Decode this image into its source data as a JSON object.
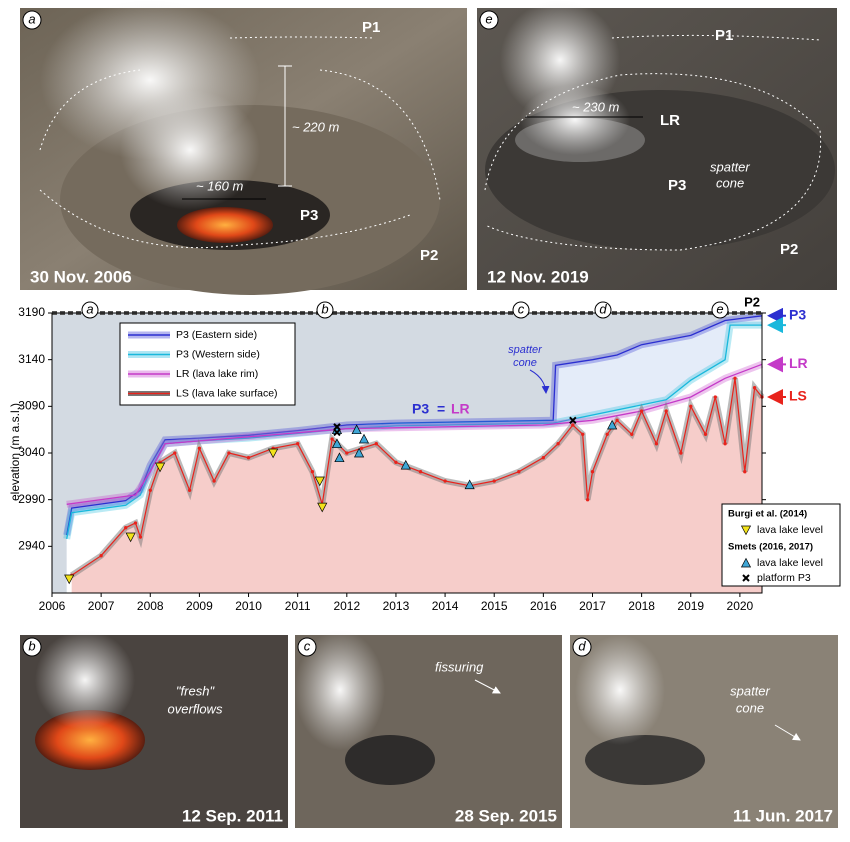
{
  "photos": [
    {
      "letter": "a",
      "date": "30 Nov. 2006",
      "labels": [
        "P1",
        "~ 220 m",
        "~ 160 m",
        "P3",
        "P2"
      ]
    },
    {
      "letter": "e",
      "date": "12 Nov. 2019",
      "labels": [
        "P1",
        "~ 230 m",
        "LR",
        "spatter",
        "cone",
        "P3",
        "P2"
      ]
    },
    {
      "letter": "b",
      "date": "12 Sep. 2011",
      "labels": [
        "\"fresh\"",
        "overflows"
      ]
    },
    {
      "letter": "c",
      "date": "28 Sep. 2015",
      "labels": [
        "fissuring"
      ]
    },
    {
      "letter": "d",
      "date": "11 Jun. 2017",
      "labels": [
        "spatter",
        "cone"
      ]
    }
  ],
  "chart_data": {
    "type": "line",
    "y_label": "elevation (m a.s.l.)",
    "xlim": [
      2006,
      2020.45
    ],
    "xticks": [
      2006,
      2007,
      2008,
      2009,
      2010,
      2011,
      2012,
      2013,
      2014,
      2015,
      2016,
      2017,
      2018,
      2019,
      2020
    ],
    "ylim": [
      2890,
      3190
    ],
    "yticks": [
      2940,
      2990,
      3040,
      3090,
      3140,
      3190
    ],
    "photo_markers": [
      "a",
      "b",
      "c",
      "d",
      "e"
    ],
    "reference_line": {
      "label": "P2",
      "value": 3190,
      "color": "#555555"
    },
    "annotations": {
      "spatter_cone": [
        "spatter",
        "cone"
      ],
      "equality": [
        "P3",
        "=",
        "LR"
      ]
    },
    "series": [
      {
        "name": "P3 (Eastern side)",
        "end_label": "P3",
        "color": "#2b2fd0",
        "x": [
          2006.3,
          2006.4,
          2007.5,
          2007.8,
          2008.0,
          2008.3,
          2009,
          2010,
          2011,
          2012,
          2013,
          2016.2,
          2016.25,
          2017,
          2017.5,
          2018,
          2019,
          2019.7,
          2020.45
        ],
        "values": [
          2952,
          2981,
          2989,
          3000,
          3027,
          3054,
          3056,
          3059,
          3064,
          3070,
          3072,
          3075,
          3134,
          3140,
          3145,
          3156,
          3166,
          3182,
          3187
        ]
      },
      {
        "name": "P3 (Western side)",
        "color": "#19b8dc",
        "x": [
          2006.3,
          2006.4,
          2007.5,
          2007.8,
          2008.0,
          2008.3,
          2009,
          2010,
          2011,
          2012,
          2013,
          2016.2,
          2018.5,
          2019,
          2019.7,
          2019.8,
          2020.45
        ],
        "values": [
          2948,
          2976,
          2984,
          2995,
          3022,
          3050,
          3053,
          3056,
          3061,
          3066,
          3069,
          3072,
          3097,
          3118,
          3140,
          3177,
          3177
        ]
      },
      {
        "name": "LR (lava lake rim)",
        "end_label": "LR",
        "color": "#c43ac8",
        "x": [
          2006.3,
          2007.7,
          2008.0,
          2008.3,
          2012,
          2016,
          2017,
          2018,
          2019,
          2019.7,
          2020.45
        ],
        "values": [
          2985,
          2995,
          3020,
          3050,
          3066,
          3070,
          3075,
          3085,
          3100,
          3120,
          3135
        ]
      },
      {
        "name": "LS (lava lake surface)",
        "end_label": "LS",
        "color": "#e8231c",
        "x": [
          2006.4,
          2007.0,
          2007.5,
          2007.7,
          2007.8,
          2008.0,
          2008.2,
          2008.5,
          2008.8,
          2009.0,
          2009.3,
          2009.6,
          2010.0,
          2010.5,
          2011.0,
          2011.3,
          2011.5,
          2011.7,
          2012.0,
          2012.3,
          2012.6,
          2013.0,
          2013.5,
          2014.0,
          2014.5,
          2015.0,
          2015.5,
          2016.0,
          2016.3,
          2016.6,
          2016.8,
          2016.9,
          2017.0,
          2017.3,
          2017.5,
          2017.8,
          2018.0,
          2018.3,
          2018.5,
          2018.8,
          2019.0,
          2019.3,
          2019.5,
          2019.7,
          2019.9,
          2020.1,
          2020.3,
          2020.45
        ],
        "values": [
          2909,
          2930,
          2960,
          2965,
          2950,
          3000,
          3030,
          3040,
          3000,
          3045,
          3010,
          3040,
          3035,
          3045,
          3050,
          3020,
          2985,
          3055,
          3040,
          3045,
          3050,
          3030,
          3020,
          3010,
          3005,
          3010,
          3020,
          3035,
          3050,
          3070,
          3060,
          2990,
          3020,
          3060,
          3075,
          3060,
          3085,
          3050,
          3085,
          3040,
          3090,
          3060,
          3100,
          3050,
          3120,
          3020,
          3110,
          3100
        ]
      }
    ],
    "marker_groups": [
      {
        "title": "Burgi et al. (2014)",
        "series": [
          {
            "name": "lava lake level",
            "marker": "triangle-down",
            "color": "#f2e21b",
            "x": [
              2006.35,
              2007.6,
              2008.2,
              2010.5,
              2011.45,
              2011.5
            ],
            "values": [
              2905,
              2950,
              3025,
              3040,
              3010,
              2982
            ]
          }
        ]
      },
      {
        "title": "Smets (2016, 2017)",
        "series": [
          {
            "name": "lava lake level",
            "marker": "triangle-up",
            "color": "#3fa7d6",
            "x": [
              2011.8,
              2011.8,
              2011.85,
              2012.2,
              2012.25,
              2012.35,
              2013.2,
              2014.5,
              2017.4
            ],
            "values": [
              3065,
              3050,
              3035,
              3065,
              3040,
              3055,
              3027,
              3006,
              3070
            ]
          },
          {
            "name": "platform P3",
            "marker": "x",
            "color": "#000000",
            "x": [
              2011.8,
              2011.8,
              2016.6
            ],
            "values": [
              3068,
              3062,
              3075
            ]
          }
        ]
      }
    ]
  }
}
